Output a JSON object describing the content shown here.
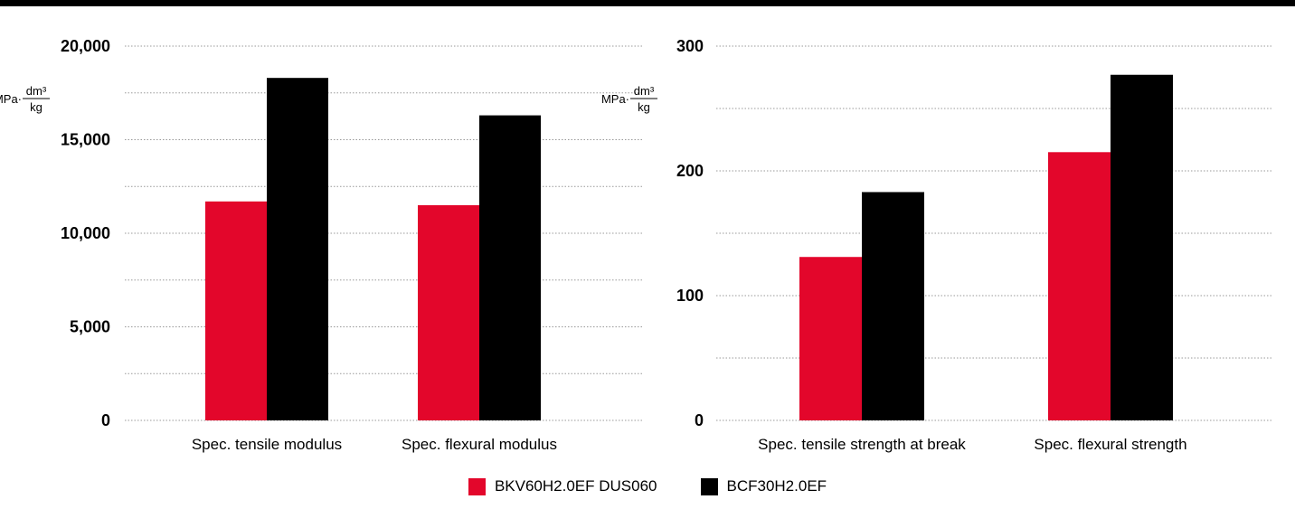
{
  "chart_data": [
    {
      "type": "bar",
      "unit_label": {
        "prefix": "MPa·",
        "numerator": "dm³",
        "denominator": "kg"
      },
      "categories": [
        "Spec. tensile modulus",
        "Spec. flexural modulus"
      ],
      "ylim": [
        0,
        20000
      ],
      "yticks": [
        0,
        5000,
        10000,
        15000,
        20000
      ],
      "ytick_labels": [
        "0",
        "5,000",
        "10,000",
        "15,000",
        "20,000"
      ],
      "grid": true,
      "series": [
        {
          "name": "BKV60H2.0EF DUS060",
          "values": [
            11700,
            11500
          ]
        },
        {
          "name": "BCF30H2.0EF",
          "values": [
            18300,
            16300
          ]
        }
      ]
    },
    {
      "type": "bar",
      "unit_label": {
        "prefix": "MPa·",
        "numerator": "dm³",
        "denominator": "kg"
      },
      "categories": [
        "Spec. tensile strength at break",
        "Spec. flexural strength"
      ],
      "ylim": [
        0,
        300
      ],
      "yticks": [
        0,
        100,
        200,
        300
      ],
      "ytick_labels": [
        "0",
        "100",
        "200",
        "300"
      ],
      "grid": true,
      "series": [
        {
          "name": "BKV60H2.0EF DUS060",
          "values": [
            131,
            215
          ]
        },
        {
          "name": "BCF30H2.0EF",
          "values": [
            183,
            277
          ]
        }
      ]
    }
  ],
  "legend": {
    "placement": "bottom",
    "items": [
      {
        "label": "BKV60H2.0EF DUS060",
        "color": "#e3062b"
      },
      {
        "label": "BCF30H2.0EF",
        "color": "#000000"
      }
    ]
  },
  "colors": {
    "series_1": "#e3062b",
    "series_2": "#000000",
    "grid": "#999999"
  }
}
